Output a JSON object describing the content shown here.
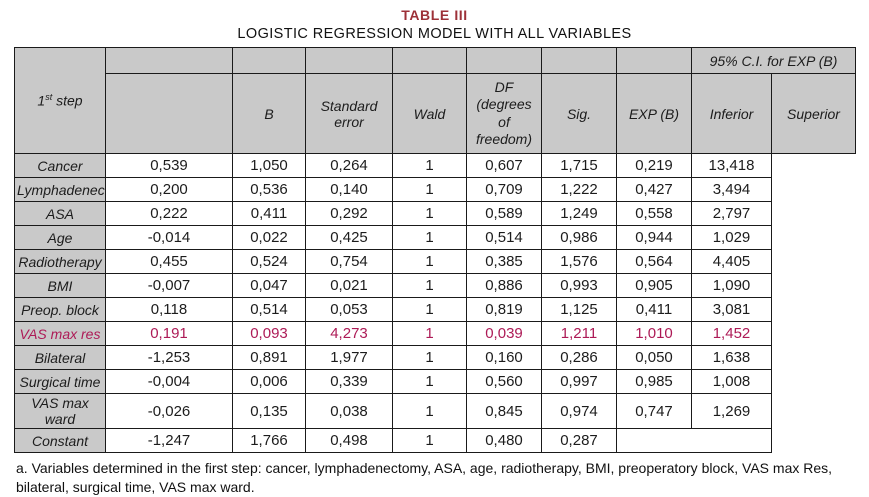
{
  "title": "TABLE III",
  "subtitle": "LOGISTIC REGRESSION MODEL WITH ALL VARIABLES",
  "colors": {
    "title": "#9d3138",
    "highlight": "#ad1a56",
    "header_bg": "#c9c9c9",
    "border": "#1a1a1a",
    "text": "#1c1c1c"
  },
  "table": {
    "ci_header": "95% C.I. for EXP (B)",
    "step_label": {
      "num": "1",
      "sup": "st",
      "rest": " step"
    },
    "columns": [
      "B",
      "Standard error",
      "Wald",
      "DF\n(degrees\nof\nfreedom)",
      "Sig.",
      "EXP (B)",
      "Inferior",
      "Superior"
    ],
    "rows": [
      {
        "label": "Cancer",
        "highlight": false,
        "values": [
          "0,539",
          "1,050",
          "0,264",
          "1",
          "0,607",
          "1,715",
          "0,219",
          "13,418"
        ]
      },
      {
        "label": "Lymphadenectomy",
        "highlight": false,
        "values": [
          "0,200",
          "0,536",
          "0,140",
          "1",
          "0,709",
          "1,222",
          "0,427",
          "3,494"
        ]
      },
      {
        "label": "ASA",
        "highlight": false,
        "values": [
          "0,222",
          "0,411",
          "0,292",
          "1",
          "0,589",
          "1,249",
          "0,558",
          "2,797"
        ]
      },
      {
        "label": "Age",
        "highlight": false,
        "values": [
          "-0,014",
          "0,022",
          "0,425",
          "1",
          "0,514",
          "0,986",
          "0,944",
          "1,029"
        ]
      },
      {
        "label": "Radiotherapy",
        "highlight": false,
        "values": [
          "0,455",
          "0,524",
          "0,754",
          "1",
          "0,385",
          "1,576",
          "0,564",
          "4,405"
        ]
      },
      {
        "label": "BMI",
        "highlight": false,
        "values": [
          "-0,007",
          "0,047",
          "0,021",
          "1",
          "0,886",
          "0,993",
          "0,905",
          "1,090"
        ]
      },
      {
        "label": "Preop. block",
        "highlight": false,
        "values": [
          "0,118",
          "0,514",
          "0,053",
          "1",
          "0,819",
          "1,125",
          "0,411",
          "3,081"
        ]
      },
      {
        "label": "VAS max res",
        "highlight": true,
        "values": [
          "0,191",
          "0,093",
          "4,273",
          "1",
          "0,039",
          "1,211",
          "1,010",
          "1,452"
        ]
      },
      {
        "label": "Bilateral",
        "highlight": false,
        "values": [
          "-1,253",
          "0,891",
          "1,977",
          "1",
          "0,160",
          "0,286",
          "0,050",
          "1,638"
        ]
      },
      {
        "label": "Surgical time",
        "highlight": false,
        "values": [
          "-0,004",
          "0,006",
          "0,339",
          "1",
          "0,560",
          "0,997",
          "0,985",
          "1,008"
        ]
      },
      {
        "label": "VAS max ward",
        "highlight": false,
        "values": [
          "-0,026",
          "0,135",
          "0,038",
          "1",
          "0,845",
          "0,974",
          "0,747",
          "1,269"
        ]
      },
      {
        "label": "Constant",
        "highlight": false,
        "values": [
          "-1,247",
          "1,766",
          "0,498",
          "1",
          "0,480",
          "0,287",
          "",
          ""
        ]
      }
    ]
  },
  "footnote": "a. Variables determined in the first step: cancer, lymphadenectomy, ASA, age, radiotherapy, BMI, preoperatory block, VAS max Res, bilateral, surgical time, VAS max ward."
}
